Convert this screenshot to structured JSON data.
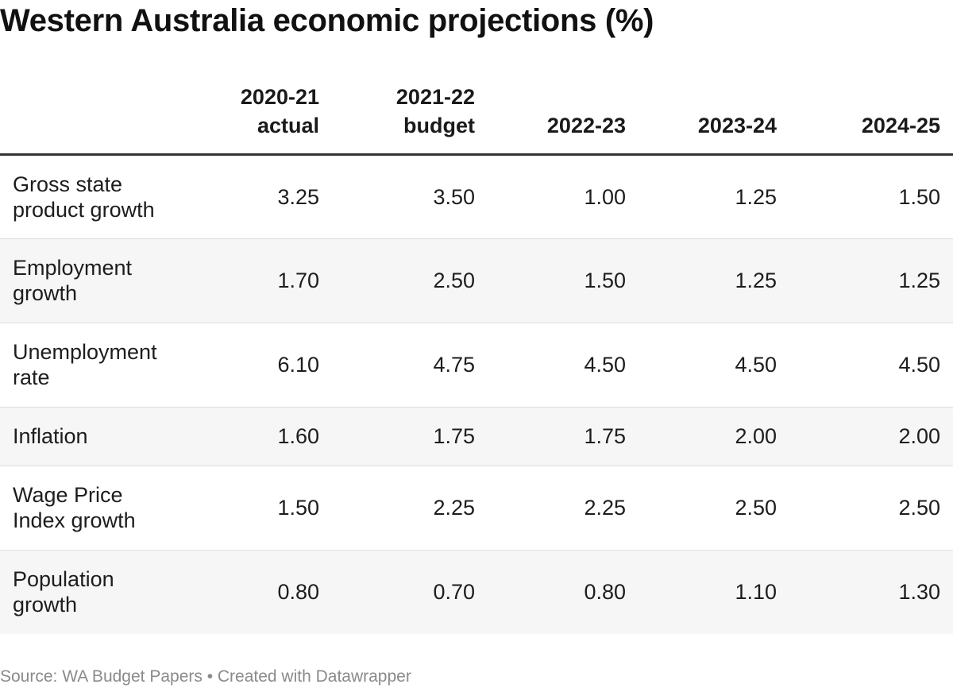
{
  "title": "Western Australia economic projections (%)",
  "footer": "Source: WA Budget Papers • Created with Datawrapper",
  "chart_data": {
    "type": "table",
    "title": "Western Australia economic projections (%)",
    "columns": [
      {
        "line1": "2020-21",
        "line2": "actual"
      },
      {
        "line1": "2021-22",
        "line2": "budget"
      },
      {
        "line1": "",
        "line2": "2022-23"
      },
      {
        "line1": "",
        "line2": "2023-24"
      },
      {
        "line1": "",
        "line2": "2024-25"
      }
    ],
    "rows": [
      {
        "label": "Gross state product growth",
        "values": [
          "3.25",
          "3.50",
          "1.00",
          "1.25",
          "1.50"
        ]
      },
      {
        "label": "Employment growth",
        "values": [
          "1.70",
          "2.50",
          "1.50",
          "1.25",
          "1.25"
        ]
      },
      {
        "label": "Unemployment rate",
        "values": [
          "6.10",
          "4.75",
          "4.50",
          "4.50",
          "4.50"
        ]
      },
      {
        "label": "Inflation",
        "values": [
          "1.60",
          "1.75",
          "1.75",
          "2.00",
          "2.00"
        ]
      },
      {
        "label": "Wage Price Index growth",
        "values": [
          "1.50",
          "2.25",
          "2.25",
          "2.50",
          "2.50"
        ]
      },
      {
        "label": "Population growth",
        "values": [
          "0.80",
          "0.70",
          "0.80",
          "1.10",
          "1.30"
        ]
      }
    ],
    "source": "WA Budget Papers"
  }
}
